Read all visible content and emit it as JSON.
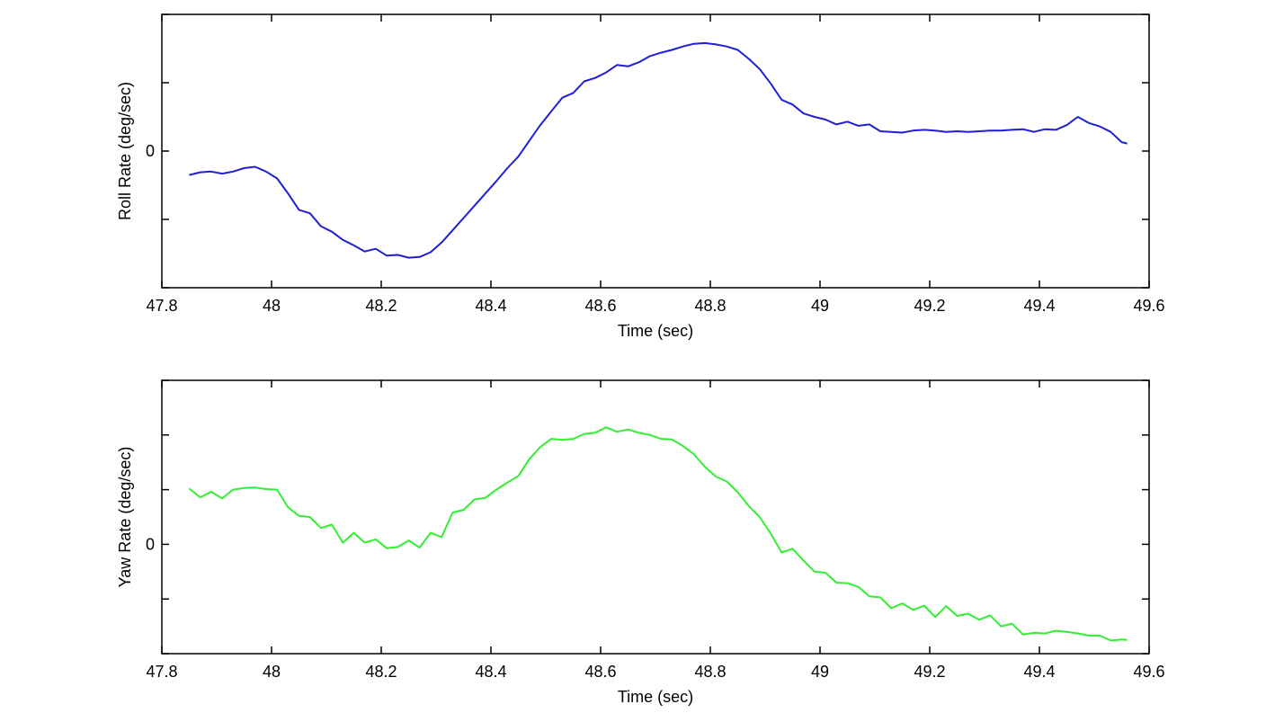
{
  "chart_data": [
    {
      "type": "line",
      "xlabel": "Time (sec)",
      "ylabel": "Roll Rate (deg/sec)",
      "xlim": [
        47.8,
        49.6
      ],
      "ylim": [
        -2,
        2
      ],
      "xticks": [
        47.8,
        48.0,
        48.2,
        48.4,
        48.6,
        48.8,
        49.0,
        49.2,
        49.4,
        49.6
      ],
      "xtick_labels": [
        "47.8",
        "48",
        "48.2",
        "48.4",
        "48.6",
        "48.8",
        "49",
        "49.2",
        "49.4",
        "49.6"
      ],
      "yticks": [
        -2,
        -1,
        0,
        1,
        2
      ],
      "ytick_labels": [
        "",
        "",
        "0",
        "",
        ""
      ],
      "grid": false,
      "series": [
        {
          "color": "#1f1fd6",
          "x": [
            47.85,
            47.87,
            47.89,
            47.91,
            47.93,
            47.95,
            47.97,
            47.99,
            48.01,
            48.03,
            48.05,
            48.07,
            48.09,
            48.11,
            48.13,
            48.15,
            48.17,
            48.19,
            48.21,
            48.23,
            48.25,
            48.27,
            48.29,
            48.31,
            48.33,
            48.35,
            48.37,
            48.39,
            48.41,
            48.43,
            48.45,
            48.47,
            48.49,
            48.51,
            48.53,
            48.55,
            48.57,
            48.59,
            48.61,
            48.63,
            48.65,
            48.67,
            48.69,
            48.71,
            48.73,
            48.75,
            48.77,
            48.79,
            48.81,
            48.83,
            48.85,
            48.87,
            48.89,
            48.91,
            48.93,
            48.95,
            48.97,
            48.99,
            49.01,
            49.03,
            49.05,
            49.07,
            49.09,
            49.11,
            49.13,
            49.15,
            49.17,
            49.19,
            49.21,
            49.23,
            49.25,
            49.27,
            49.29,
            49.31,
            49.33,
            49.35,
            49.37,
            49.39,
            49.41,
            49.43,
            49.45,
            49.47,
            49.49,
            49.51,
            49.53,
            49.55,
            49.56
          ],
          "values": [
            -0.35,
            -0.31,
            -0.3,
            -0.33,
            -0.3,
            -0.25,
            -0.23,
            -0.3,
            -0.4,
            -0.62,
            -0.86,
            -0.91,
            -1.1,
            -1.18,
            -1.3,
            -1.38,
            -1.47,
            -1.43,
            -1.53,
            -1.52,
            -1.56,
            -1.55,
            -1.48,
            -1.34,
            -1.16,
            -0.98,
            -0.8,
            -0.62,
            -0.44,
            -0.25,
            -0.08,
            0.15,
            0.38,
            0.58,
            0.78,
            0.85,
            1.02,
            1.07,
            1.15,
            1.26,
            1.24,
            1.3,
            1.39,
            1.44,
            1.48,
            1.53,
            1.57,
            1.58,
            1.56,
            1.53,
            1.48,
            1.35,
            1.2,
            0.99,
            0.75,
            0.68,
            0.55,
            0.5,
            0.46,
            0.39,
            0.43,
            0.37,
            0.39,
            0.29,
            0.28,
            0.27,
            0.3,
            0.31,
            0.3,
            0.28,
            0.29,
            0.28,
            0.29,
            0.3,
            0.3,
            0.31,
            0.32,
            0.28,
            0.32,
            0.31,
            0.38,
            0.5,
            0.41,
            0.36,
            0.28,
            0.13,
            0.11
          ]
        }
      ]
    },
    {
      "type": "line",
      "xlabel": "Time (sec)",
      "ylabel": "Yaw Rate (deg/sec)",
      "xlim": [
        47.8,
        49.6
      ],
      "ylim": [
        -2,
        3
      ],
      "xticks": [
        47.8,
        48.0,
        48.2,
        48.4,
        48.6,
        48.8,
        49.0,
        49.2,
        49.4,
        49.6
      ],
      "xtick_labels": [
        "47.8",
        "48",
        "48.2",
        "48.4",
        "48.6",
        "48.8",
        "49",
        "49.2",
        "49.4",
        "49.6"
      ],
      "yticks": [
        -2,
        -1,
        0,
        1,
        2,
        3
      ],
      "ytick_labels": [
        "",
        "",
        "0",
        "",
        "",
        ""
      ],
      "grid": false,
      "series": [
        {
          "color": "#33ee33",
          "x": [
            47.85,
            47.87,
            47.89,
            47.91,
            47.93,
            47.95,
            47.97,
            47.99,
            48.01,
            48.03,
            48.05,
            48.07,
            48.09,
            48.11,
            48.13,
            48.15,
            48.17,
            48.19,
            48.21,
            48.23,
            48.25,
            48.27,
            48.29,
            48.31,
            48.33,
            48.35,
            48.37,
            48.39,
            48.41,
            48.43,
            48.45,
            48.47,
            48.49,
            48.51,
            48.53,
            48.55,
            48.57,
            48.59,
            48.61,
            48.63,
            48.65,
            48.67,
            48.69,
            48.71,
            48.73,
            48.75,
            48.77,
            48.79,
            48.81,
            48.83,
            48.85,
            48.87,
            48.89,
            48.91,
            48.93,
            48.95,
            48.97,
            48.99,
            49.01,
            49.03,
            49.05,
            49.07,
            49.09,
            49.11,
            49.13,
            49.15,
            49.17,
            49.19,
            49.21,
            49.23,
            49.25,
            49.27,
            49.29,
            49.31,
            49.33,
            49.35,
            49.37,
            49.39,
            49.41,
            49.43,
            49.45,
            49.47,
            49.49,
            49.51,
            49.53,
            49.55,
            49.56
          ],
          "values": [
            1.02,
            0.86,
            0.96,
            0.84,
            1.0,
            1.03,
            1.04,
            1.01,
            1.0,
            0.68,
            0.52,
            0.5,
            0.3,
            0.36,
            0.03,
            0.21,
            0.03,
            0.09,
            -0.07,
            -0.05,
            0.07,
            -0.06,
            0.21,
            0.13,
            0.58,
            0.63,
            0.82,
            0.85,
            1.0,
            1.13,
            1.25,
            1.56,
            1.78,
            1.93,
            1.91,
            1.93,
            2.02,
            2.04,
            2.14,
            2.06,
            2.1,
            2.04,
            2.0,
            1.93,
            1.92,
            1.8,
            1.65,
            1.42,
            1.24,
            1.15,
            0.95,
            0.7,
            0.5,
            0.2,
            -0.15,
            -0.08,
            -0.3,
            -0.5,
            -0.52,
            -0.7,
            -0.71,
            -0.78,
            -0.95,
            -0.97,
            -1.17,
            -1.08,
            -1.2,
            -1.12,
            -1.33,
            -1.13,
            -1.31,
            -1.27,
            -1.38,
            -1.3,
            -1.5,
            -1.45,
            -1.65,
            -1.62,
            -1.63,
            -1.58,
            -1.6,
            -1.63,
            -1.67,
            -1.67,
            -1.76,
            -1.74,
            -1.75
          ]
        }
      ]
    }
  ]
}
